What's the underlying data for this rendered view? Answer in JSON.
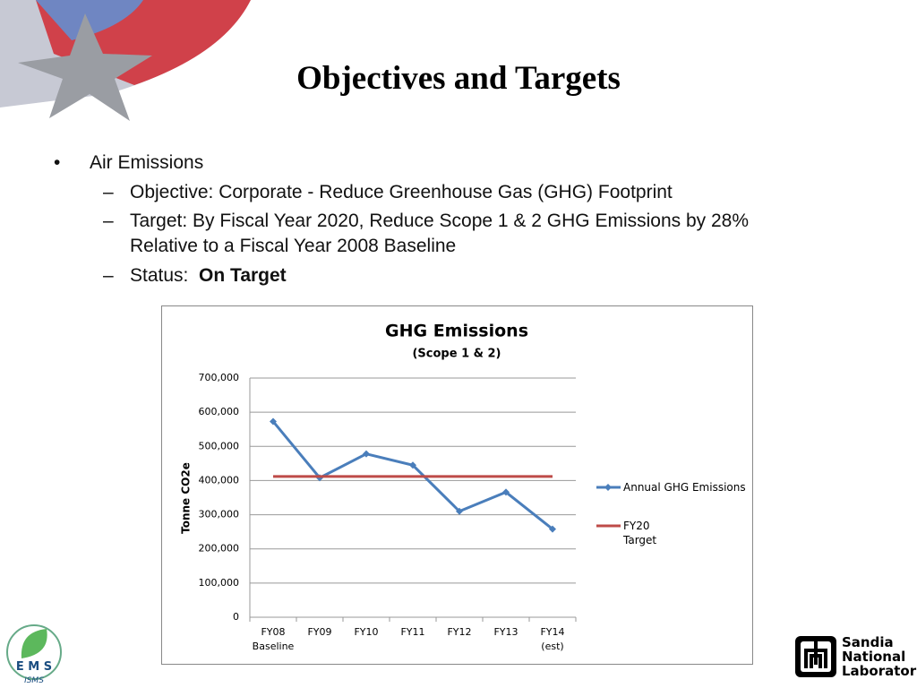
{
  "slide": {
    "title": "Objectives and Targets",
    "bullets": [
      {
        "text": "Air Emissions",
        "subitems": [
          {
            "text": "Objective:  Corporate - Reduce Greenhouse Gas (GHG) Footprint"
          },
          {
            "text": "Target: By Fiscal Year 2020, Reduce Scope 1 & 2 GHG Emissions by 28%\nRelative to a Fiscal Year 2008 Baseline"
          },
          {
            "text": "Status: ",
            "emphasis": "On Target"
          }
        ]
      }
    ]
  },
  "chart_data": {
    "type": "line",
    "title": "GHG Emissions",
    "subtitle": "(Scope 1 & 2)",
    "y_label": "Tonne CO2e",
    "categories": [
      "FY08\nBaseline",
      "FY09",
      "FY10",
      "FY11",
      "FY12",
      "FY13",
      "FY14\n(est)"
    ],
    "series": [
      {
        "name": "Annual GHG Emissions",
        "color": "#4a7ebb",
        "values": [
          573000,
          408000,
          478000,
          445000,
          310000,
          366000,
          258000
        ]
      },
      {
        "name": "FY20\nTarget",
        "color": "#be4b48",
        "values": [
          412000,
          412000,
          412000,
          412000,
          412000,
          412000,
          412000
        ]
      }
    ],
    "ylim": [
      0,
      700000
    ],
    "yticks": [
      0,
      {
        "value": 100000,
        "label": "100,000"
      },
      {
        "value": 200000,
        "label": "200,000"
      },
      {
        "value": 300000,
        "label": "300,000"
      },
      {
        "value": 400000,
        "label": "400,000"
      },
      {
        "value": 500000,
        "label": "500,000"
      },
      {
        "value": 600000,
        "label": "600,000"
      },
      {
        "value": 700000,
        "label": "700,000"
      }
    ],
    "grid": true,
    "legend": "right"
  },
  "logos": {
    "ems": [
      "E M S",
      "ISMS"
    ],
    "sandia": [
      "Sandia",
      "National",
      "Laboratories"
    ]
  }
}
